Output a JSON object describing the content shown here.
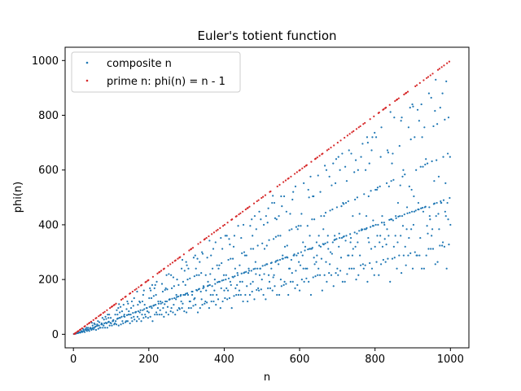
{
  "chart_data": {
    "type": "scatter",
    "title": "Euler's totient function",
    "xlabel": "n",
    "ylabel": "phi(n)",
    "xlim": [
      -22,
      1049
    ],
    "ylim": [
      -49.5,
      1048.5
    ],
    "xticks": [
      0,
      200,
      400,
      600,
      800,
      1000
    ],
    "yticks": [
      0,
      200,
      400,
      600,
      800,
      1000
    ],
    "grid": false,
    "legend_position": "top-left",
    "series": [
      {
        "name": "composite n",
        "color": "#1f77b4",
        "n_range": [
          1,
          1000
        ],
        "membership": "composite"
      },
      {
        "name": "prime n: phi(n) = n - 1",
        "color": "#d62728",
        "n_range": [
          1,
          1000
        ],
        "membership": "prime"
      }
    ]
  }
}
